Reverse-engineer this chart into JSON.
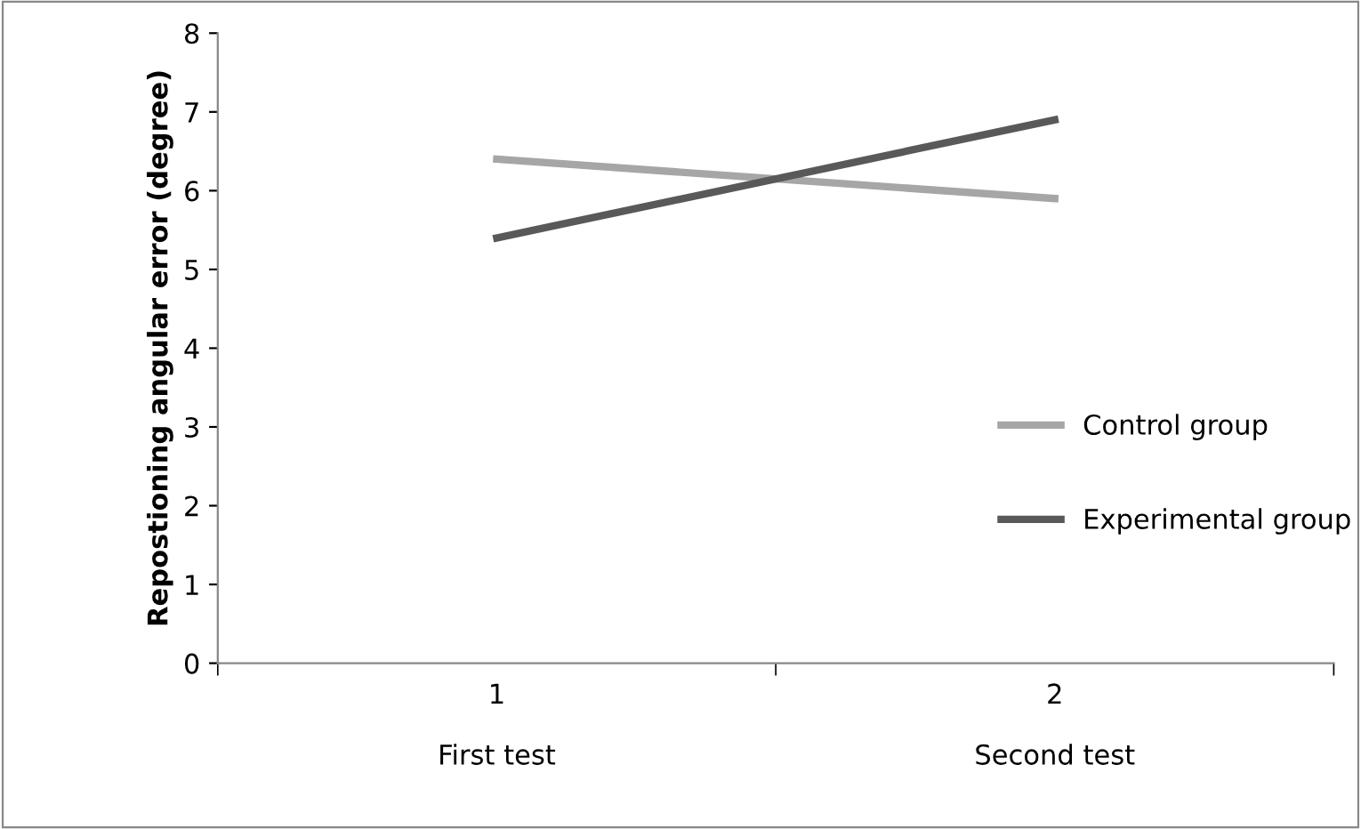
{
  "chart_data": {
    "type": "line",
    "ylabel": "Repostioning angular error (degree)",
    "categories": [
      "1\n\nFirst test",
      "2\n\nSecond test"
    ],
    "series": [
      {
        "name": "Control group",
        "color": "#a6a6a6",
        "values": [
          6.4,
          5.9
        ]
      },
      {
        "name": "Experimental group",
        "color": "#595959",
        "values": [
          5.4,
          6.9
        ]
      }
    ],
    "ylim": [
      0,
      8
    ],
    "yticks": [
      0,
      1,
      2,
      3,
      4,
      5,
      6,
      7,
      8
    ],
    "grid": false,
    "legend": "right",
    "marker": "none",
    "line_style": "solid"
  }
}
